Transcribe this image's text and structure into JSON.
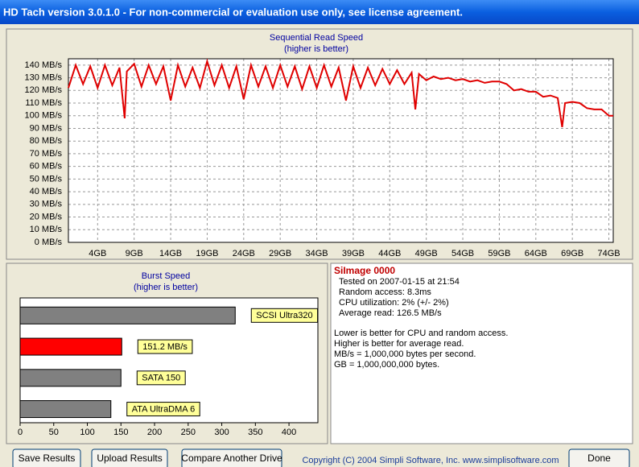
{
  "window_title": "HD Tach version 3.0.1.0  - For non-commercial or evaluation use only, see license agreement.",
  "chart_data": [
    {
      "type": "line",
      "title": "Sequential Read Speed",
      "subtitle": "(higher is better)",
      "x": [
        0,
        1,
        2,
        3,
        4,
        5,
        6,
        7,
        7.7,
        8,
        9,
        10,
        11,
        12,
        13,
        14,
        15,
        16,
        17,
        18,
        19,
        20,
        21,
        22,
        23,
        24,
        25,
        26,
        27,
        28,
        29,
        30,
        31,
        32,
        33,
        34,
        35,
        36,
        37,
        38,
        39,
        40,
        41,
        42,
        43,
        44,
        45,
        46,
        47,
        47.5,
        48,
        49,
        50,
        51,
        52,
        53,
        54,
        55,
        56,
        57,
        58,
        59,
        60,
        61,
        62,
        63,
        64,
        65,
        66,
        67,
        67.6,
        68,
        69,
        70,
        71,
        72,
        73,
        74,
        74.6
      ],
      "series": [
        {
          "color": "#e00000",
          "values": [
            122,
            140,
            125,
            139,
            122,
            140,
            124,
            138,
            98,
            135,
            141,
            123,
            140,
            125,
            139,
            112,
            140,
            123,
            138,
            122,
            143,
            124,
            140,
            122,
            139,
            113,
            140,
            123,
            139,
            122,
            140,
            123,
            139,
            121,
            139,
            122,
            140,
            123,
            138,
            112,
            139,
            122,
            138,
            124,
            137,
            125,
            136,
            125,
            134,
            105,
            133,
            128,
            131,
            129,
            130,
            128,
            129,
            127,
            128,
            126,
            127,
            127,
            125,
            120,
            121,
            119,
            119,
            115,
            116,
            114,
            91,
            110,
            111,
            110,
            106,
            105,
            105,
            100,
            100
          ]
        }
      ],
      "xlim": [
        0,
        74.6
      ],
      "ylim": [
        0,
        145
      ],
      "xticks": [
        {
          "value": 4,
          "label": "4GB"
        },
        {
          "value": 9,
          "label": "9GB"
        },
        {
          "value": 14,
          "label": "14GB"
        },
        {
          "value": 19,
          "label": "19GB"
        },
        {
          "value": 24,
          "label": "24GB"
        },
        {
          "value": 29,
          "label": "29GB"
        },
        {
          "value": 34,
          "label": "34GB"
        },
        {
          "value": 39,
          "label": "39GB"
        },
        {
          "value": 44,
          "label": "44GB"
        },
        {
          "value": 49,
          "label": "49GB"
        },
        {
          "value": 54,
          "label": "54GB"
        },
        {
          "value": 59,
          "label": "59GB"
        },
        {
          "value": 64,
          "label": "64GB"
        },
        {
          "value": 69,
          "label": "69GB"
        },
        {
          "value": 74,
          "label": "74GB"
        }
      ],
      "yticks": [
        {
          "value": 0,
          "label": "0 MB/s"
        },
        {
          "value": 10,
          "label": "10 MB/s"
        },
        {
          "value": 20,
          "label": "20 MB/s"
        },
        {
          "value": 30,
          "label": "30 MB/s"
        },
        {
          "value": 40,
          "label": "40 MB/s"
        },
        {
          "value": 50,
          "label": "50 MB/s"
        },
        {
          "value": 60,
          "label": "60 MB/s"
        },
        {
          "value": 70,
          "label": "70 MB/s"
        },
        {
          "value": 80,
          "label": "80 MB/s"
        },
        {
          "value": 90,
          "label": "90 MB/s"
        },
        {
          "value": 100,
          "label": "100 MB/s"
        },
        {
          "value": 110,
          "label": "110 MB/s"
        },
        {
          "value": 120,
          "label": "120 MB/s"
        },
        {
          "value": 130,
          "label": "130 MB/s"
        },
        {
          "value": 140,
          "label": "140 MB/s"
        }
      ],
      "grid": true
    },
    {
      "type": "hbar",
      "title": "Burst Speed",
      "subtitle": "(higher is better)",
      "categories": [
        "SCSI Ultra320",
        null,
        "SATA 150",
        "ATA UltraDMA 6"
      ],
      "values": [
        320,
        151.2,
        150,
        135
      ],
      "value_labels": [
        null,
        "151.2 MB/s",
        null,
        null
      ],
      "colors": [
        "#808080",
        "#ff0000",
        "#808080",
        "#808080"
      ],
      "xlim": [
        0,
        443
      ],
      "xticks": [
        0,
        50,
        100,
        150,
        200,
        250,
        300,
        350,
        400
      ]
    }
  ],
  "info": {
    "drive": "SiImage 0000",
    "details": [
      "Tested on 2007-01-15 at 21:54",
      "Random access: 8.3ms",
      "CPU utilization: 2% (+/- 2%)",
      "Average read: 126.5 MB/s"
    ],
    "notes": [
      "Lower is better for CPU and random access.",
      "Higher is better for average read.",
      "MB/s = 1,000,000 bytes per second.",
      "GB = 1,000,000,000 bytes."
    ]
  },
  "buttons": [
    "Save Results",
    "Upload Results",
    "Compare Another Drive",
    "Done"
  ],
  "copyright": "Copyright (C) 2004 Simpli Software, Inc. www.simplisoftware.com"
}
